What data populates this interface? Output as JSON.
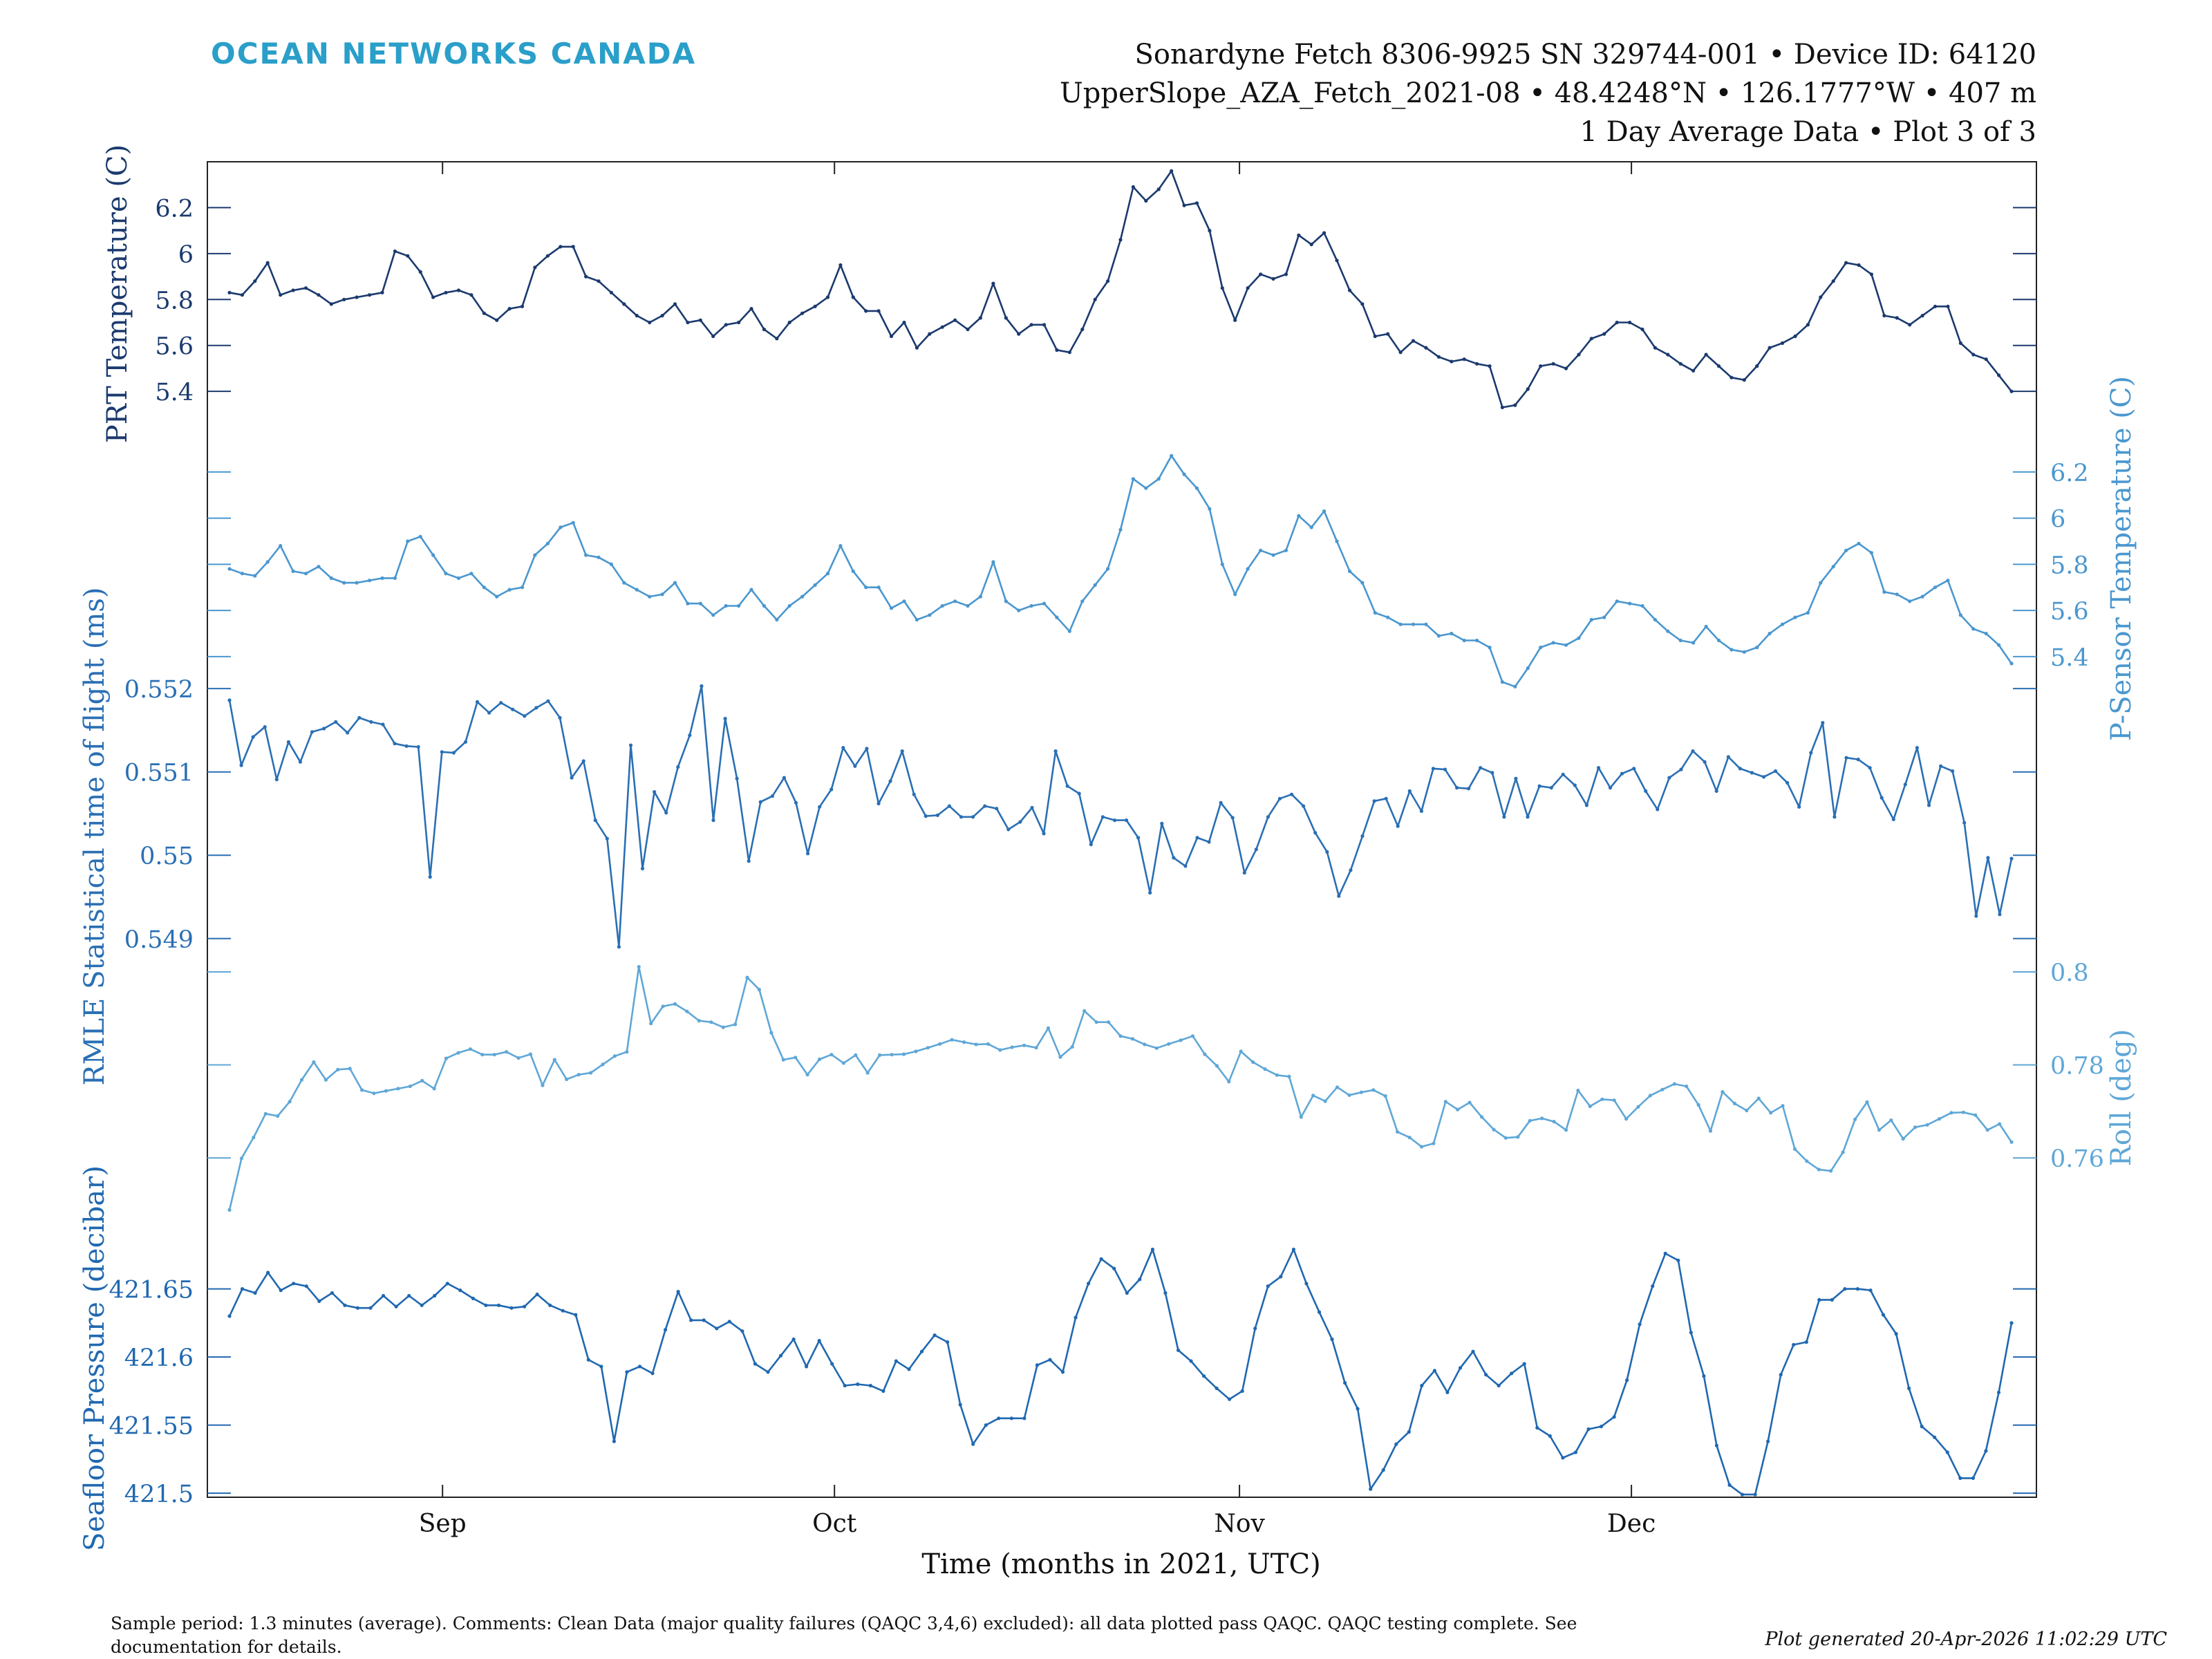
{
  "header": {
    "logo": "OCEAN NETWORKS CANADA",
    "line1": "Sonardyne Fetch 8306-9925 SN 329744-001 • Device ID: 64120",
    "line2": "UpperSlope_AZA_Fetch_2021-08 • 48.4248°N • 126.1777°W • 407 m",
    "line3": "1 Day Average Data • Plot 3 of 3"
  },
  "footer": {
    "comment_line1": "Sample period: 1.3 minutes (average). Comments: Clean Data (major quality failures (QAQC 3,4,6) excluded): all data plotted pass QAQC. QAQC testing complete. See",
    "comment_line2": "documentation for details.",
    "generated": "Plot generated 20-Apr-2026 11:02:29 UTC"
  },
  "colors": {
    "dark": "#1b3a6e",
    "light": "#4a97cf",
    "mid": "#2a6fb4",
    "pale": "#5fa7d7",
    "pressure": "#2068b0"
  },
  "chart_data": {
    "type": "line",
    "xlabel": "Time (months in 2021, UTC)",
    "x_ticks": [
      {
        "label": "Sep",
        "day": 18
      },
      {
        "label": "Oct",
        "day": 48
      },
      {
        "label": "Nov",
        "day": 79
      },
      {
        "label": "Dec",
        "day": 109
      }
    ],
    "x_range_days": [
      0,
      140
    ],
    "series": [
      {
        "id": "prt",
        "name": "PRT Temperature (C)",
        "side": "left",
        "color": "dark",
        "ylim": [
          5.25,
          6.4
        ],
        "yticks": [
          5.4,
          5.6,
          5.8,
          6,
          6.2
        ],
        "ytick_labels": [
          "5.4",
          "5.6",
          "5.8",
          "6",
          "6.2"
        ],
        "values": [
          5.83,
          5.82,
          5.88,
          5.96,
          5.82,
          5.84,
          5.85,
          5.82,
          5.78,
          5.8,
          5.81,
          5.82,
          5.83,
          6.01,
          5.99,
          5.92,
          5.81,
          5.83,
          5.84,
          5.82,
          5.74,
          5.71,
          5.76,
          5.77,
          5.94,
          5.99,
          6.03,
          6.03,
          5.9,
          5.88,
          5.83,
          5.78,
          5.73,
          5.7,
          5.73,
          5.78,
          5.7,
          5.71,
          5.64,
          5.69,
          5.7,
          5.76,
          5.67,
          5.63,
          5.7,
          5.74,
          5.77,
          5.81,
          5.95,
          5.81,
          5.75,
          5.75,
          5.64,
          5.7,
          5.59,
          5.65,
          5.68,
          5.71,
          5.67,
          5.72,
          5.87,
          5.72,
          5.65,
          5.69,
          5.69,
          5.58,
          5.57,
          5.67,
          5.8,
          5.88,
          6.06,
          6.29,
          6.23,
          6.28,
          6.36,
          6.21,
          6.22,
          6.1,
          5.85,
          5.71,
          5.85,
          5.91,
          5.89,
          5.91,
          6.08,
          6.04,
          6.09,
          5.97,
          5.84,
          5.78,
          5.64,
          5.65,
          5.57,
          5.62,
          5.59,
          5.55,
          5.53,
          5.54,
          5.52,
          5.51,
          5.33,
          5.34,
          5.41,
          5.51,
          5.52,
          5.5,
          5.56,
          5.63,
          5.65,
          5.7,
          5.7,
          5.67,
          5.59,
          5.56,
          5.52,
          5.49,
          5.56,
          5.51,
          5.46,
          5.45,
          5.51,
          5.59,
          5.61,
          5.64,
          5.69,
          5.81,
          5.88,
          5.96,
          5.95,
          5.91,
          5.73,
          5.72,
          5.69,
          5.73,
          5.77,
          5.77,
          5.61,
          5.56,
          5.54,
          5.47,
          5.4
        ]
      },
      {
        "id": "psensor",
        "name": "P-Sensor Temperature (C)",
        "side": "right",
        "color": "light",
        "ylim": [
          5.25,
          6.4
        ],
        "yticks": [
          5.4,
          5.6,
          5.8,
          6,
          6.2
        ],
        "ytick_labels": [
          "5.4",
          "5.6",
          "5.8",
          "6",
          "6.2"
        ],
        "values": [
          5.78,
          5.76,
          5.75,
          5.81,
          5.88,
          5.77,
          5.76,
          5.79,
          5.74,
          5.72,
          5.72,
          5.73,
          5.74,
          5.74,
          5.9,
          5.92,
          5.84,
          5.76,
          5.74,
          5.76,
          5.7,
          5.66,
          5.69,
          5.7,
          5.84,
          5.89,
          5.96,
          5.98,
          5.84,
          5.83,
          5.8,
          5.72,
          5.69,
          5.66,
          5.67,
          5.72,
          5.63,
          5.63,
          5.58,
          5.62,
          5.62,
          5.69,
          5.62,
          5.56,
          5.62,
          5.66,
          5.71,
          5.76,
          5.88,
          5.77,
          5.7,
          5.7,
          5.61,
          5.64,
          5.56,
          5.58,
          5.62,
          5.64,
          5.62,
          5.66,
          5.81,
          5.64,
          5.6,
          5.62,
          5.63,
          5.57,
          5.51,
          5.64,
          5.71,
          5.78,
          5.95,
          6.17,
          6.13,
          6.17,
          6.27,
          6.19,
          6.13,
          6.04,
          5.8,
          5.67,
          5.78,
          5.86,
          5.84,
          5.86,
          6.01,
          5.96,
          6.03,
          5.9,
          5.77,
          5.72,
          5.59,
          5.57,
          5.54,
          5.54,
          5.54,
          5.49,
          5.5,
          5.47,
          5.47,
          5.44,
          5.29,
          5.27,
          5.35,
          5.44,
          5.46,
          5.45,
          5.48,
          5.56,
          5.57,
          5.64,
          5.63,
          5.62,
          5.56,
          5.51,
          5.47,
          5.46,
          5.53,
          5.47,
          5.43,
          5.42,
          5.44,
          5.5,
          5.54,
          5.57,
          5.59,
          5.72,
          5.79,
          5.86,
          5.89,
          5.85,
          5.68,
          5.67,
          5.64,
          5.66,
          5.7,
          5.73,
          5.58,
          5.52,
          5.5,
          5.45,
          5.37
        ]
      },
      {
        "id": "rmle",
        "name": "RMLE Statistical time of flight (ms)",
        "side": "left",
        "color": "mid",
        "ylim": [
          0.5486,
          0.5523
        ],
        "yticks": [
          0.549,
          0.55,
          0.551,
          0.552
        ],
        "ytick_labels": [
          "0.549",
          "0.55",
          "0.551",
          "0.552"
        ],
        "values": [
          0.55186,
          0.55108,
          0.55142,
          0.55154,
          0.55091,
          0.55136,
          0.55112,
          0.55148,
          0.55152,
          0.5516,
          0.55147,
          0.55165,
          0.5516,
          0.55157,
          0.55134,
          0.55131,
          0.5513,
          0.54974,
          0.55124,
          0.55123,
          0.55136,
          0.55184,
          0.55171,
          0.55183,
          0.55175,
          0.55167,
          0.55177,
          0.55185,
          0.55165,
          0.55093,
          0.55113,
          0.55042,
          0.5502,
          0.5489,
          0.55132,
          0.54984,
          0.55076,
          0.55051,
          0.55106,
          0.55144,
          0.55203,
          0.55042,
          0.55164,
          0.55092,
          0.54993,
          0.55064,
          0.55071,
          0.55093,
          0.55063,
          0.55002,
          0.55058,
          0.55079,
          0.55129,
          0.55107,
          0.55128,
          0.55062,
          0.55089,
          0.55125,
          0.55073,
          0.55047,
          0.55048,
          0.55059,
          0.55046,
          0.55046,
          0.55059,
          0.55056,
          0.55031,
          0.5504,
          0.55057,
          0.55026,
          0.55125,
          0.55083,
          0.55074,
          0.55013,
          0.55046,
          0.55042,
          0.55042,
          0.55021,
          0.54955,
          0.55038,
          0.54997,
          0.54987,
          0.55021,
          0.55016,
          0.55063,
          0.55045,
          0.54979,
          0.55007,
          0.55046,
          0.55068,
          0.55073,
          0.55059,
          0.55027,
          0.55004,
          0.54951,
          0.54982,
          0.55023,
          0.55065,
          0.55068,
          0.55035,
          0.55077,
          0.55053,
          0.55104,
          0.55103,
          0.55081,
          0.5508,
          0.55105,
          0.55099,
          0.55046,
          0.55092,
          0.55046,
          0.55083,
          0.55081,
          0.55097,
          0.55084,
          0.5506,
          0.55105,
          0.55081,
          0.55098,
          0.55104,
          0.55077,
          0.55055,
          0.55093,
          0.55103,
          0.55125,
          0.55112,
          0.55077,
          0.55118,
          0.55104,
          0.55099,
          0.55094,
          0.55101,
          0.55087,
          0.55058,
          0.55123,
          0.55159,
          0.55046,
          0.55117,
          0.55115,
          0.55105,
          0.55069,
          0.55043,
          0.55085,
          0.55129,
          0.5506,
          0.55107,
          0.55101,
          0.55039,
          0.54927,
          0.54997,
          0.54929,
          0.54996
        ]
      },
      {
        "id": "roll",
        "name": "Roll (deg)",
        "side": "right",
        "color": "pale",
        "ylim": [
          0.745,
          0.8
        ],
        "yticks": [
          0.76,
          0.78,
          0.8
        ],
        "ytick_labels": [
          "0.76",
          "0.78",
          "0.8"
        ],
        "values": [
          0.7488,
          0.7599,
          0.7644,
          0.7695,
          0.769,
          0.7721,
          0.7768,
          0.7806,
          0.7768,
          0.779,
          0.7792,
          0.7746,
          0.7739,
          0.7744,
          0.7749,
          0.7754,
          0.7766,
          0.7749,
          0.7814,
          0.7826,
          0.7834,
          0.7822,
          0.7822,
          0.7828,
          0.7815,
          0.7823,
          0.7756,
          0.7811,
          0.7769,
          0.7779,
          0.7783,
          0.7801,
          0.7819,
          0.7828,
          0.8011,
          0.7889,
          0.7926,
          0.7931,
          0.7915,
          0.7895,
          0.7892,
          0.7881,
          0.7887,
          0.7988,
          0.7962,
          0.7869,
          0.7811,
          0.7816,
          0.7779,
          0.7812,
          0.7822,
          0.7804,
          0.7821,
          0.7783,
          0.7821,
          0.7822,
          0.7823,
          0.7829,
          0.7837,
          0.7845,
          0.7854,
          0.7849,
          0.7844,
          0.7845,
          0.7832,
          0.7838,
          0.7842,
          0.7837,
          0.7879,
          0.7817,
          0.7839,
          0.7916,
          0.7892,
          0.7892,
          0.7862,
          0.7856,
          0.7844,
          0.7836,
          0.7845,
          0.7853,
          0.7862,
          0.7823,
          0.7798,
          0.7764,
          0.7829,
          0.7806,
          0.7791,
          0.7778,
          0.7775,
          0.7688,
          0.7734,
          0.7722,
          0.7752,
          0.7735,
          0.7741,
          0.7746,
          0.7733,
          0.7656,
          0.7644,
          0.7624,
          0.7631,
          0.7721,
          0.7704,
          0.7719,
          0.7688,
          0.7661,
          0.7643,
          0.7645,
          0.768,
          0.7685,
          0.7678,
          0.766,
          0.7745,
          0.7711,
          0.7726,
          0.7724,
          0.7684,
          0.771,
          0.7734,
          0.7747,
          0.7759,
          0.7754,
          0.7714,
          0.7658,
          0.7742,
          0.7717,
          0.7702,
          0.7728,
          0.7697,
          0.7712,
          0.7619,
          0.7593,
          0.7575,
          0.7572,
          0.7612,
          0.7683,
          0.772,
          0.766,
          0.7681,
          0.7641,
          0.7666,
          0.7671,
          0.7684,
          0.7697,
          0.7698,
          0.7692,
          0.766,
          0.7673,
          0.7634
        ]
      },
      {
        "id": "pressure",
        "name": "Seafloor Pressure (decibar)",
        "side": "left",
        "color": "pressure",
        "ylim": [
          421.497,
          421.695
        ],
        "yticks": [
          421.5,
          421.55,
          421.6,
          421.65
        ],
        "ytick_labels": [
          "421.5",
          "421.55",
          "421.6",
          "421.65"
        ],
        "values": [
          421.63,
          421.65,
          421.647,
          421.662,
          421.649,
          421.654,
          421.652,
          421.641,
          421.647,
          421.638,
          421.636,
          421.636,
          421.645,
          421.637,
          421.645,
          421.638,
          421.645,
          421.654,
          421.649,
          421.643,
          421.638,
          421.638,
          421.636,
          421.637,
          421.646,
          421.638,
          421.634,
          421.631,
          421.598,
          421.593,
          421.538,
          421.589,
          421.593,
          421.588,
          421.62,
          421.648,
          421.627,
          421.627,
          421.621,
          421.626,
          421.619,
          421.595,
          421.589,
          421.601,
          421.613,
          421.593,
          421.612,
          421.595,
          421.579,
          421.58,
          421.579,
          421.575,
          421.597,
          421.591,
          421.604,
          421.616,
          421.611,
          421.565,
          421.536,
          421.55,
          421.555,
          421.555,
          421.555,
          421.594,
          421.598,
          421.589,
          421.629,
          421.654,
          421.672,
          421.665,
          421.647,
          421.657,
          421.679,
          421.647,
          421.605,
          421.597,
          421.586,
          421.577,
          421.569,
          421.575,
          421.621,
          421.652,
          421.659,
          421.679,
          421.654,
          421.633,
          421.613,
          421.581,
          421.562,
          421.503,
          421.517,
          421.536,
          421.545,
          421.579,
          421.59,
          421.574,
          421.592,
          421.604,
          421.587,
          421.579,
          421.588,
          421.595,
          421.548,
          421.542,
          421.526,
          421.53,
          421.547,
          421.549,
          421.556,
          421.583,
          421.624,
          421.652,
          421.676,
          421.671,
          421.618,
          421.586,
          421.535,
          421.506,
          421.499,
          421.499,
          421.538,
          421.587,
          421.609,
          421.611,
          421.642,
          421.642,
          421.65,
          421.65,
          421.649,
          421.631,
          421.617,
          421.577,
          421.549,
          421.541,
          421.53,
          421.511,
          421.511,
          421.531,
          421.574,
          421.625
        ]
      }
    ]
  }
}
